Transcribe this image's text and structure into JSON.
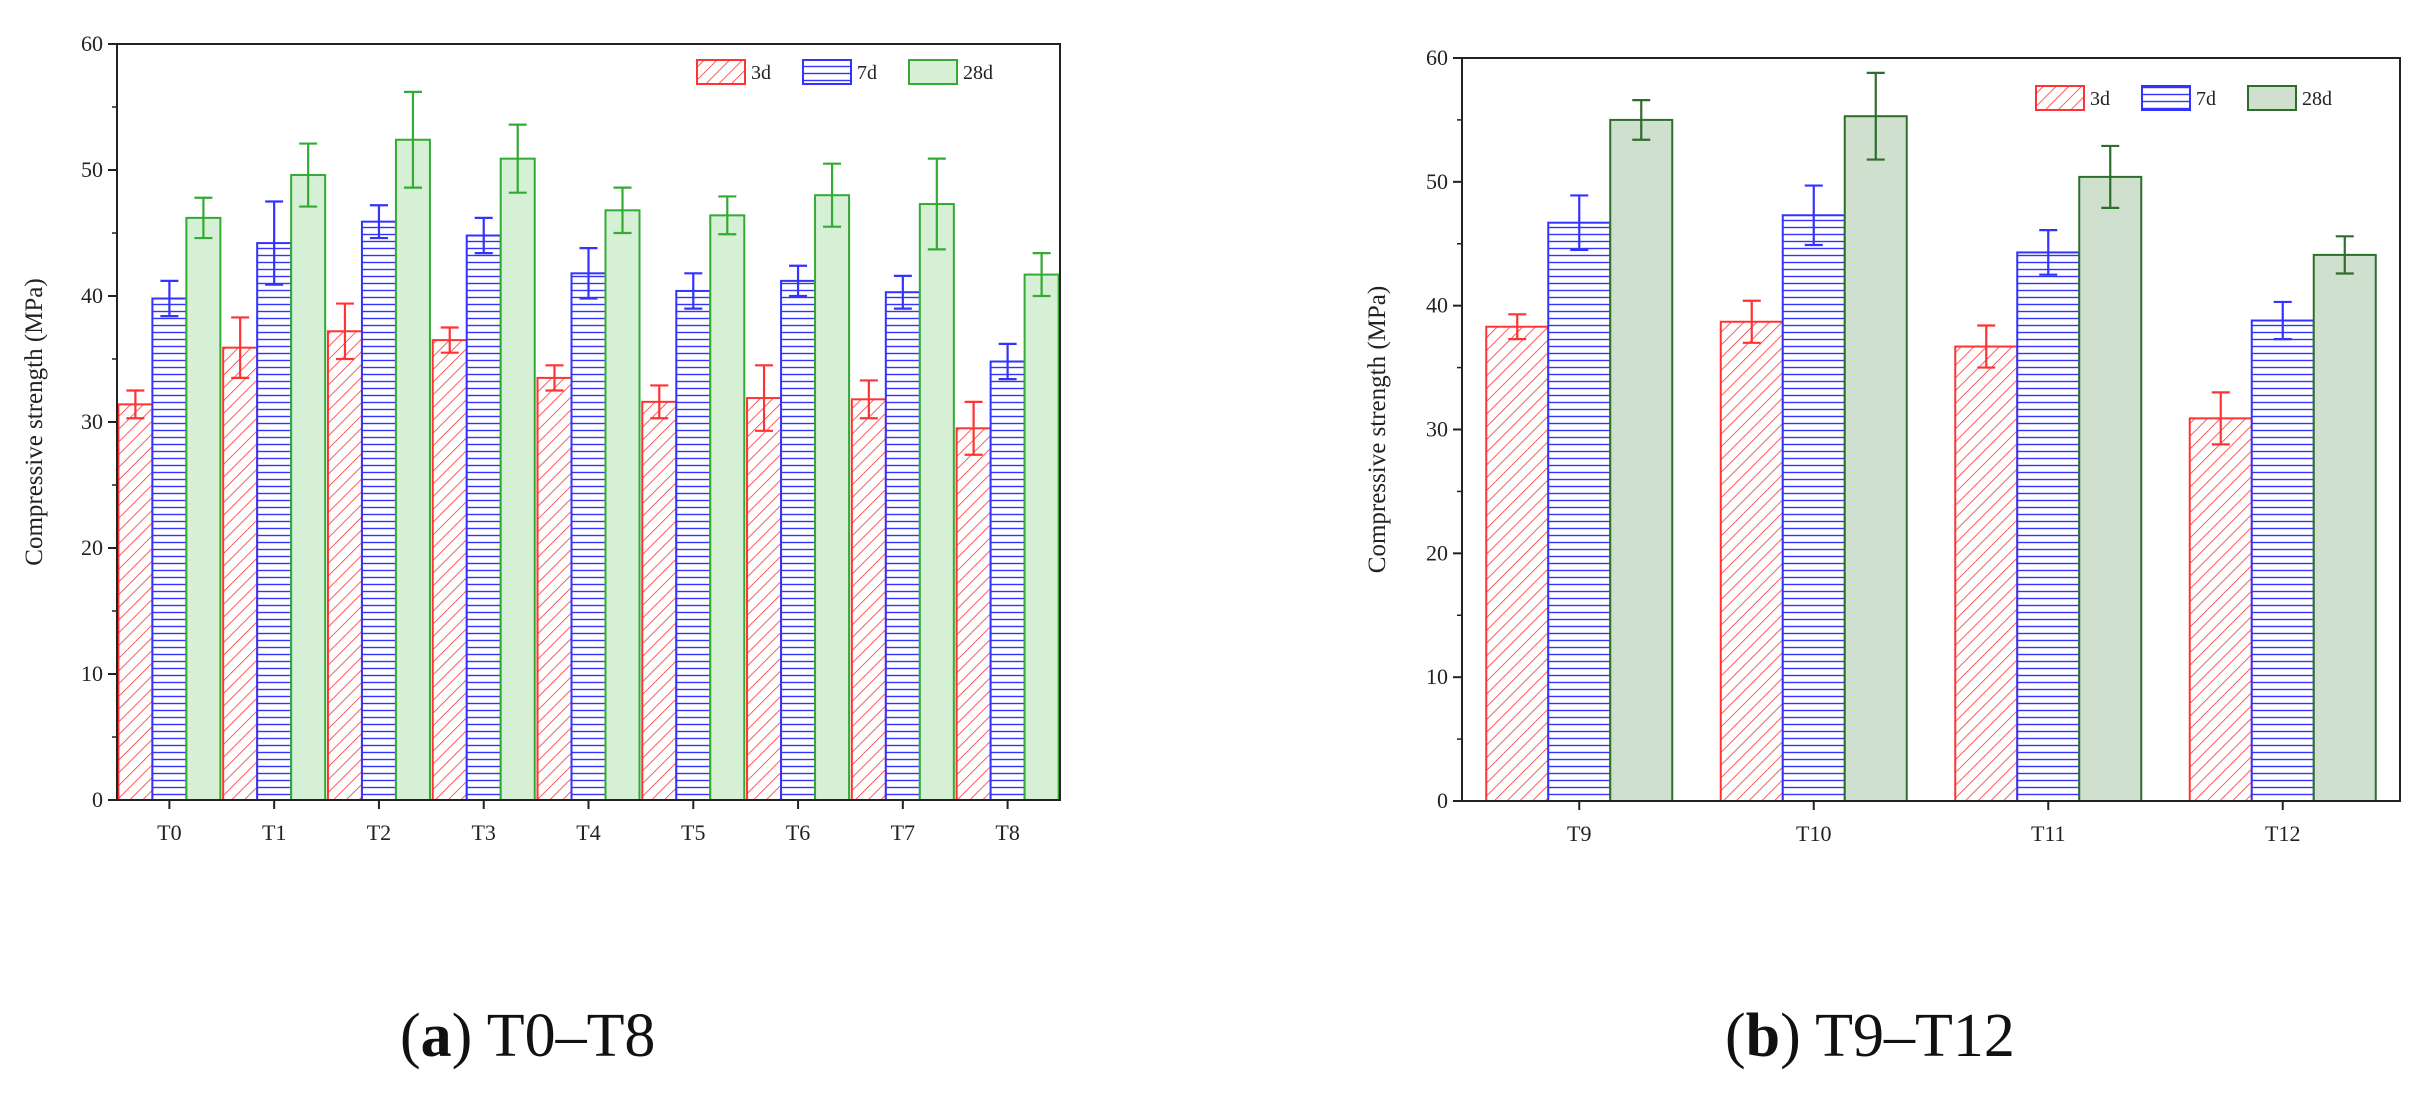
{
  "chart_data": [
    {
      "type": "bar",
      "ylabel": "Compressive strength (MPa)",
      "xlabel": "",
      "ylim": [
        0,
        60
      ],
      "yticks": [
        0,
        10,
        20,
        30,
        40,
        50,
        60
      ],
      "grid": false,
      "legend_position": "top-right",
      "categories": [
        "T0",
        "T1",
        "T2",
        "T3",
        "T4",
        "T5",
        "T6",
        "T7",
        "T8"
      ],
      "series": [
        {
          "name": "3d",
          "color": "#ff3333",
          "pattern": "diagonal-hatch",
          "values": [
            31.4,
            35.9,
            37.2,
            36.5,
            33.5,
            31.6,
            31.9,
            31.8,
            29.5
          ],
          "errors": [
            1.1,
            2.4,
            2.2,
            1.0,
            1.0,
            1.3,
            2.6,
            1.5,
            2.1
          ]
        },
        {
          "name": "7d",
          "color": "#3333ff",
          "pattern": "horizontal-hatch",
          "values": [
            39.8,
            44.2,
            45.9,
            44.8,
            41.8,
            40.4,
            41.2,
            40.3,
            34.8
          ],
          "errors": [
            1.4,
            3.3,
            1.3,
            1.4,
            2.0,
            1.4,
            1.2,
            1.3,
            1.4
          ]
        },
        {
          "name": "28d",
          "color": "#33aa33",
          "fill": "#d6f0d6",
          "values": [
            46.2,
            49.6,
            52.4,
            50.9,
            46.8,
            46.4,
            48.0,
            47.3,
            41.7
          ],
          "errors": [
            1.6,
            2.5,
            3.8,
            2.7,
            1.8,
            1.5,
            2.5,
            3.6,
            1.7
          ]
        }
      ]
    },
    {
      "type": "bar",
      "ylabel": "Compressive strength (MPa)",
      "xlabel": "",
      "ylim": [
        0,
        60
      ],
      "yticks": [
        0,
        10,
        20,
        30,
        40,
        50,
        60
      ],
      "grid": false,
      "legend_position": "top-right",
      "categories": [
        "T9",
        "T10",
        "T11",
        "T12"
      ],
      "series": [
        {
          "name": "3d",
          "color": "#ff3333",
          "pattern": "diagonal-hatch",
          "values": [
            38.3,
            38.7,
            36.7,
            30.9
          ],
          "errors": [
            1.0,
            1.7,
            1.7,
            2.1
          ]
        },
        {
          "name": "7d",
          "color": "#3333ff",
          "pattern": "horizontal-hatch",
          "values": [
            46.7,
            47.3,
            44.3,
            38.8
          ],
          "errors": [
            2.2,
            2.4,
            1.8,
            1.5
          ]
        },
        {
          "name": "28d",
          "color": "#2d6e2d",
          "fill": "#cfe0cf",
          "values": [
            55.0,
            55.3,
            50.4,
            44.1
          ],
          "errors": [
            1.6,
            3.5,
            2.5,
            1.5
          ]
        }
      ]
    }
  ],
  "captions": [
    {
      "letter": "a",
      "text": " T0–T8"
    },
    {
      "letter": "b",
      "text": " T9–T12"
    }
  ]
}
